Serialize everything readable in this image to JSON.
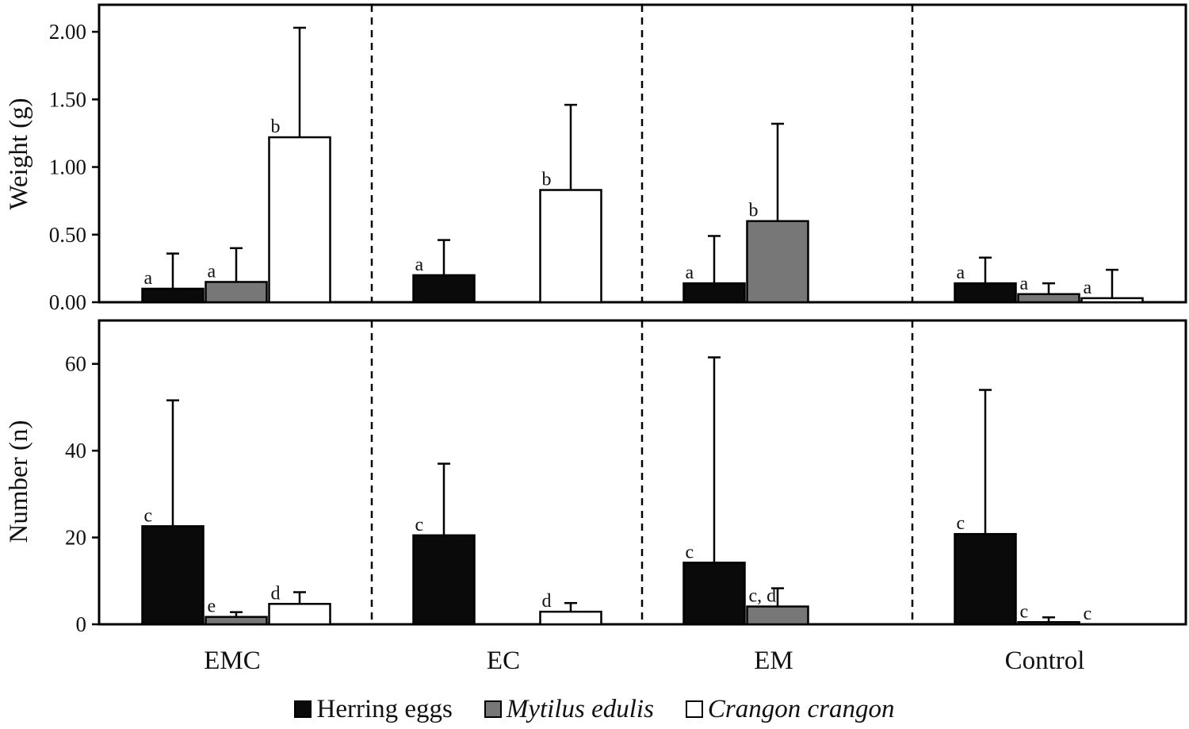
{
  "chart_data": [
    {
      "type": "bar",
      "panel": "top",
      "ylabel": "Weight (g)",
      "ylim": [
        0,
        2.2
      ],
      "yticks": [
        "0.00",
        "0.50",
        "1.00",
        "1.50",
        "2.00"
      ],
      "ytick_values": [
        0,
        0.5,
        1.0,
        1.5,
        2.0
      ],
      "categories": [
        "EMC",
        "EC",
        "EM",
        "Control"
      ],
      "series": [
        {
          "name": "Herring eggs",
          "values": [
            0.1,
            0.2,
            0.14,
            0.14
          ],
          "errors": [
            0.26,
            0.26,
            0.35,
            0.19
          ],
          "letters": [
            "a",
            "a",
            "a",
            "a"
          ]
        },
        {
          "name": "Mytilus edulis",
          "values": [
            0.15,
            null,
            0.6,
            0.06
          ],
          "errors": [
            0.25,
            null,
            0.72,
            0.08
          ],
          "letters": [
            "a",
            "",
            "b",
            "a"
          ]
        },
        {
          "name": "Crangon crangon",
          "values": [
            1.22,
            0.83,
            null,
            0.03
          ],
          "errors": [
            0.81,
            0.63,
            null,
            0.21
          ],
          "letters": [
            "b",
            "b",
            "",
            "a"
          ]
        }
      ],
      "grid": false,
      "dividers": "dashed between categories"
    },
    {
      "type": "bar",
      "panel": "bottom",
      "ylabel": "Number (n)",
      "ylim": [
        0,
        70
      ],
      "yticks": [
        "0",
        "20",
        "40",
        "60"
      ],
      "ytick_values": [
        0,
        20,
        40,
        60
      ],
      "categories": [
        "EMC",
        "EC",
        "EM",
        "Control"
      ],
      "series": [
        {
          "name": "Herring eggs",
          "values": [
            22.6,
            20.5,
            14.2,
            20.8
          ],
          "errors": [
            29.0,
            16.5,
            47.3,
            33.2
          ],
          "letters": [
            "c",
            "c",
            "c",
            "c"
          ]
        },
        {
          "name": "Mytilus edulis",
          "values": [
            1.7,
            null,
            4.1,
            0.5
          ],
          "errors": [
            1.1,
            null,
            4.2,
            1.1
          ],
          "letters": [
            "e",
            "",
            "c, d",
            "c"
          ]
        },
        {
          "name": "Crangon crangon",
          "values": [
            4.7,
            2.9,
            null,
            0.0
          ],
          "errors": [
            2.7,
            2.0,
            null,
            0.0
          ],
          "letters": [
            "d",
            "d",
            "",
            "c"
          ]
        }
      ],
      "grid": false,
      "legend": "bottom-center"
    }
  ],
  "legend": {
    "items": [
      {
        "label": "Herring eggs",
        "color": "#0a0a0a",
        "italic": false
      },
      {
        "label": "Mytilus edulis",
        "color": "#777777",
        "italic": true
      },
      {
        "label": "Crangon crangon",
        "color": "#ffffff",
        "italic": true
      }
    ]
  },
  "colors": {
    "herring": "#0a0a0a",
    "mytilus": "#777777",
    "crangon": "#ffffff"
  }
}
